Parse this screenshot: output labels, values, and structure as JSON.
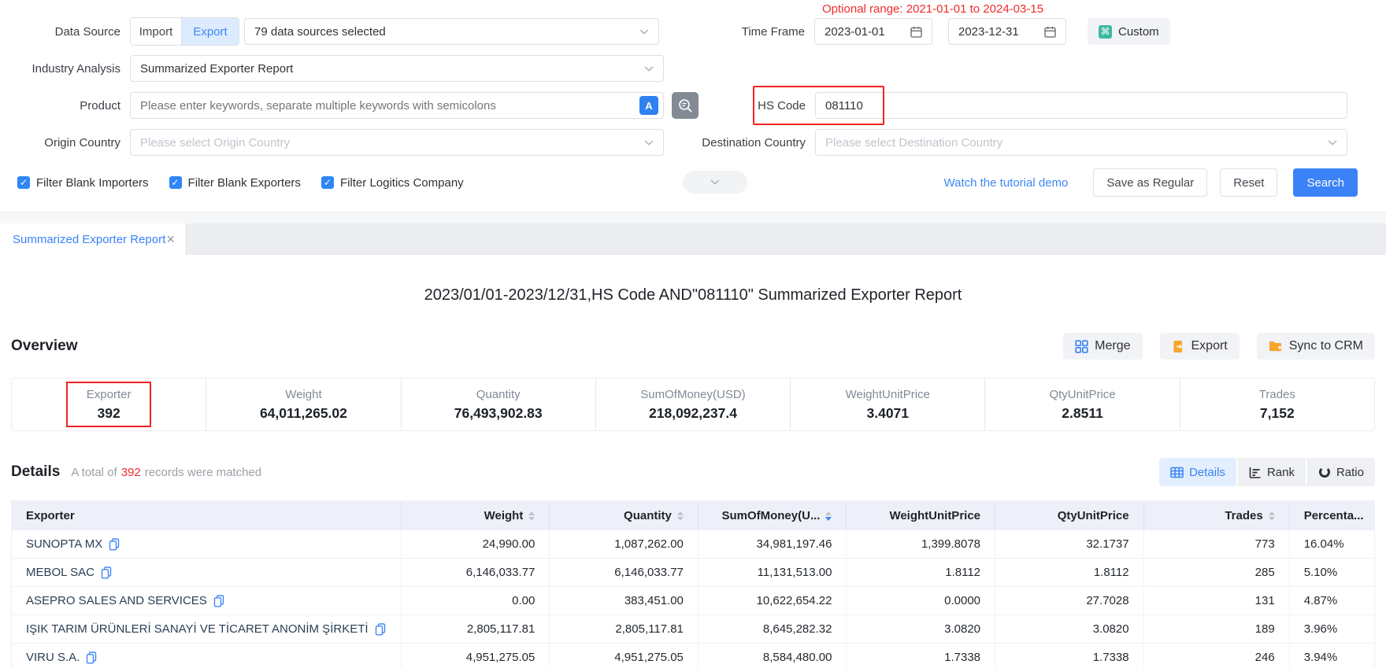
{
  "colors": {
    "accent": "#3b82f6",
    "alert_red": "#f12b2b",
    "highlight_box_red": "#f22222",
    "checkbox_blue": "#2f86f6",
    "table_header_bg": "#edf0f8",
    "gray_button_bg": "#f1f3f6",
    "custom_icon_teal": "#3fb9a1",
    "export_icon_orange": "#f6a52d"
  },
  "filter_panel": {
    "data_source": {
      "label": "Data Source",
      "import": "Import",
      "export": "Export",
      "sources_value": "79 data sources selected"
    },
    "time_frame": {
      "label": "Time Frame",
      "optional_range": "Optional range: 2021-01-01 to 2024-03-15",
      "start": "2023-01-01",
      "end": "2023-12-31",
      "custom": "Custom"
    },
    "industry_analysis": {
      "label": "Industry Analysis",
      "value": "Summarized Exporter Report"
    },
    "product": {
      "label": "Product",
      "placeholder": "Please enter keywords, separate multiple keywords with semicolons"
    },
    "hs_code": {
      "label": "HS Code",
      "value": "081110"
    },
    "origin_country": {
      "label": "Origin Country",
      "placeholder": "Please select Origin Country"
    },
    "destination_country": {
      "label": "Destination Country",
      "placeholder": "Please select Destination Country"
    },
    "checkboxes": [
      {
        "label": "Filter Blank Importers",
        "checked": true
      },
      {
        "label": "Filter Blank Exporters",
        "checked": true
      },
      {
        "label": "Filter Logitics Company",
        "checked": true
      }
    ],
    "actions": {
      "tutorial": "Watch the tutorial demo",
      "save": "Save as Regular",
      "reset": "Reset",
      "search": "Search"
    }
  },
  "tab": {
    "title": "Summarized Exporter Report",
    "close": "×"
  },
  "report": {
    "title": "2023/01/01-2023/12/31,HS Code AND\"081110\" Summarized Exporter Report",
    "overview": {
      "heading": "Overview",
      "buttons": [
        {
          "label": "Merge",
          "icon": "merge-icon"
        },
        {
          "label": "Export",
          "icon": "export-icon"
        },
        {
          "label": "Sync to CRM",
          "icon": "sync-crm-icon"
        }
      ]
    },
    "stats": [
      {
        "label": "Exporter",
        "value": "392",
        "highlighted": true
      },
      {
        "label": "Weight",
        "value": "64,011,265.02"
      },
      {
        "label": "Quantity",
        "value": "76,493,902.83"
      },
      {
        "label": "SumOfMoney(USD)",
        "value": "218,092,237.4"
      },
      {
        "label": "WeightUnitPrice",
        "value": "3.4071"
      },
      {
        "label": "QtyUnitPrice",
        "value": "2.8511"
      },
      {
        "label": "Trades",
        "value": "7,152"
      }
    ],
    "details": {
      "heading": "Details",
      "matched_prefix": "A total of",
      "matched_count": "392",
      "matched_suffix": "records were matched",
      "views": [
        {
          "label": "Details",
          "icon": "details-table-icon",
          "active": true
        },
        {
          "label": "Rank",
          "icon": "rank-chart-icon",
          "active": false
        },
        {
          "label": "Ratio",
          "icon": "ratio-donut-icon",
          "active": false
        }
      ]
    }
  },
  "table": {
    "columns": [
      {
        "label": "Exporter",
        "align": "left",
        "sortable": false
      },
      {
        "label": "Weight",
        "align": "right",
        "sortable": true
      },
      {
        "label": "Quantity",
        "align": "right",
        "sortable": true
      },
      {
        "label": "SumOfMoney(U...",
        "align": "right",
        "sortable": true,
        "sorted": "desc"
      },
      {
        "label": "WeightUnitPrice",
        "align": "right",
        "sortable": false
      },
      {
        "label": "QtyUnitPrice",
        "align": "right",
        "sortable": false
      },
      {
        "label": "Trades",
        "align": "right",
        "sortable": true
      },
      {
        "label": "Percenta...",
        "align": "left",
        "sortable": false
      }
    ],
    "rows": [
      [
        "SUNOPTA MX",
        "24,990.00",
        "1,087,262.00",
        "34,981,197.46",
        "1,399.8078",
        "32.1737",
        "773",
        "16.04%"
      ],
      [
        "MEBOL SAC",
        "6,146,033.77",
        "6,146,033.77",
        "11,131,513.00",
        "1.8112",
        "1.8112",
        "285",
        "5.10%"
      ],
      [
        "ASEPRO SALES AND SERVICES",
        "0.00",
        "383,451.00",
        "10,622,654.22",
        "0.0000",
        "27.7028",
        "131",
        "4.87%"
      ],
      [
        "IŞIK TARIM ÜRÜNLERİ SANAYİ VE TİCARET ANONİM ŞİRKETİ",
        "2,805,117.81",
        "2,805,117.81",
        "8,645,282.32",
        "3.0820",
        "3.0820",
        "189",
        "3.96%"
      ],
      [
        "VIRU S.A.",
        "4,951,275.05",
        "4,951,275.05",
        "8,584,480.00",
        "1.7338",
        "1.7338",
        "246",
        "3.94%"
      ]
    ]
  }
}
